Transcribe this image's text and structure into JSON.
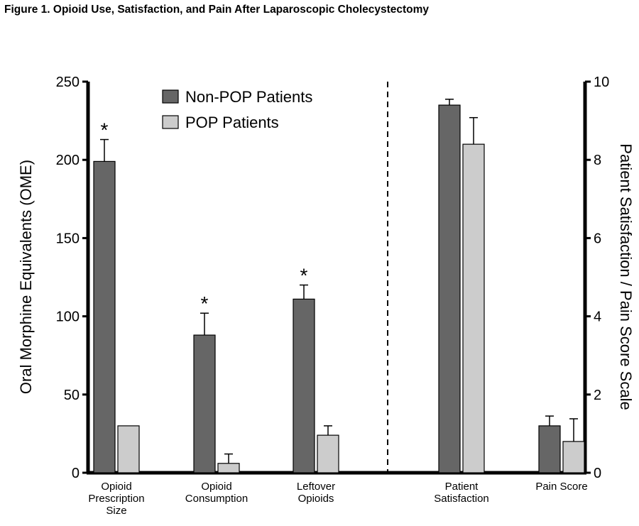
{
  "figure_title": "Figure 1. Opioid Use, Satisfaction, and Pain After Laparoscopic Cholecystectomy",
  "chart_data": {
    "type": "bar",
    "title": "Figure 1. Opioid Use, Satisfaction, and Pain After Laparoscopic Cholecystectomy",
    "left_axis": {
      "label": "Oral Morphine Equivalents (OME)",
      "range": [
        0,
        250
      ],
      "ticks": [
        "0",
        "50",
        "100",
        "150",
        "200",
        "250"
      ]
    },
    "right_axis": {
      "label": "Patient Satisfaction / Pain Score Scale",
      "range": [
        0,
        10
      ],
      "ticks": [
        "0",
        "2",
        "4",
        "6",
        "8",
        "10"
      ]
    },
    "legend": {
      "placement": "top-left",
      "entries": [
        {
          "name": "Non-POP Patients",
          "color": "#666666"
        },
        {
          "name": "POP Patients",
          "color": "#cccccc"
        }
      ]
    },
    "significance_marker": "*",
    "categories": [
      {
        "label_lines": [
          "Opioid",
          "Prescription",
          "Size"
        ],
        "axis": "left",
        "values": [
          199,
          30
        ],
        "errors": [
          14,
          0
        ],
        "significant": true
      },
      {
        "label_lines": [
          "Opioid",
          "Consumption"
        ],
        "axis": "left",
        "values": [
          88,
          6
        ],
        "errors": [
          14,
          6
        ],
        "significant": true
      },
      {
        "label_lines": [
          "Leftover",
          "Opioids"
        ],
        "axis": "left",
        "values": [
          111,
          24
        ],
        "errors": [
          9,
          6
        ],
        "significant": true
      },
      {
        "label_lines": [
          "Patient",
          "Satisfaction"
        ],
        "axis": "right",
        "values": [
          9.4,
          8.4
        ],
        "errors": [
          0.15,
          0.68
        ],
        "significant": false
      },
      {
        "label_lines": [
          "Pain Score"
        ],
        "axis": "right",
        "values": [
          1.2,
          0.8
        ],
        "errors": [
          0.25,
          0.58
        ],
        "significant": false
      }
    ],
    "divider": "dashed line between Leftover Opioids and Patient Satisfaction",
    "grid": false
  }
}
